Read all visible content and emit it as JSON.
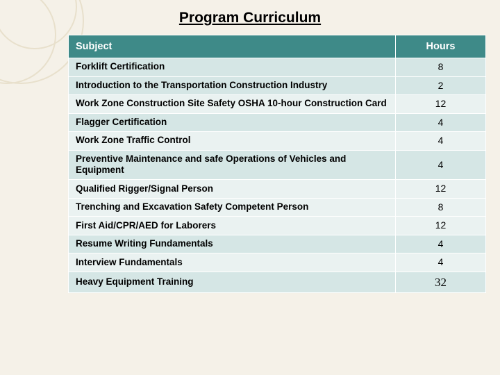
{
  "title": "Program Curriculum",
  "table": {
    "header": {
      "subject": "Subject",
      "hours": "Hours"
    },
    "colors": {
      "header_bg": "#3e8a88",
      "header_text": "#ffffff",
      "band_a": "#d5e6e5",
      "band_b": "#eaf2f1",
      "page_bg": "#f5f1e8",
      "deco_stroke": "#e8e0cc"
    },
    "rows": [
      {
        "subject": "Forklift Certification",
        "hours": "8",
        "band": "a"
      },
      {
        "subject": "Introduction to the Transportation Construction Industry",
        "hours": "2",
        "band": "a"
      },
      {
        "subject": "Work Zone Construction Site Safety OSHA 10-hour Construction Card",
        "hours": "12",
        "band": "b"
      },
      {
        "subject": "Flagger Certification",
        "hours": "4",
        "band": "a"
      },
      {
        "subject": "Work Zone Traffic Control",
        "hours": "4",
        "band": "b"
      },
      {
        "subject": "Preventive Maintenance and safe Operations of Vehicles and Equipment",
        "hours": "4",
        "band": "a"
      },
      {
        "subject": "Qualified Rigger/Signal Person",
        "hours": "12",
        "band": "b"
      },
      {
        "subject": "Trenching and Excavation Safety Competent Person",
        "hours": "8",
        "band": "b"
      },
      {
        "subject": "First Aid/CPR/AED for Laborers",
        "hours": "12",
        "band": "b"
      },
      {
        "subject": "Resume Writing Fundamentals",
        "hours": "4",
        "band": "a"
      },
      {
        "subject": "Interview Fundamentals",
        "hours": "4",
        "band": "b"
      },
      {
        "subject": "Heavy Equipment Training",
        "hours": "32",
        "band": "a",
        "last": true
      }
    ]
  }
}
